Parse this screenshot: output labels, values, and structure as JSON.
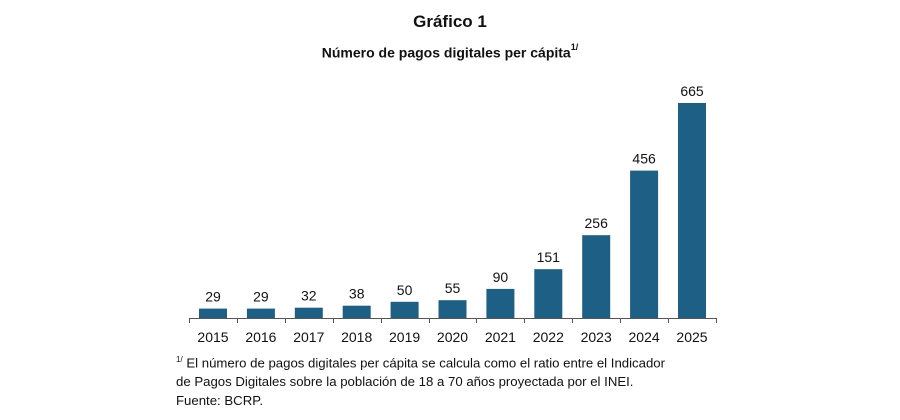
{
  "header": {
    "figure_label": "Gráfico 1",
    "subtitle": "Número de pagos digitales per cápita",
    "subtitle_note_marker": "1/"
  },
  "notes": {
    "footnote_marker": "1/",
    "footnote_line1": "El número de pagos digitales per cápita se calcula como el ratio entre el Indicador",
    "footnote_line2": "de Pagos Digitales sobre la población de 18 a 70 años proyectada por el INEI.",
    "source": "Fuente: BCRP."
  },
  "colors": {
    "bar": "#1d5f85",
    "axis": "#555555",
    "text": "#111111"
  },
  "chart_data": {
    "type": "bar",
    "title": "Gráfico 1",
    "subtitle": "Número de pagos digitales per cápita",
    "xlabel": "",
    "ylabel": "",
    "categories": [
      "2015",
      "2016",
      "2017",
      "2018",
      "2019",
      "2020",
      "2021",
      "2022",
      "2023",
      "2024",
      "2025"
    ],
    "values": [
      29,
      29,
      32,
      38,
      50,
      55,
      90,
      151,
      256,
      456,
      665
    ],
    "data_labels": [
      "29",
      "29",
      "32",
      "38",
      "50",
      "55",
      "90",
      "151",
      "256",
      "456",
      "665"
    ],
    "ylim": [
      0,
      665
    ],
    "grid": false,
    "legend": "none",
    "y_axis_visible": false
  }
}
